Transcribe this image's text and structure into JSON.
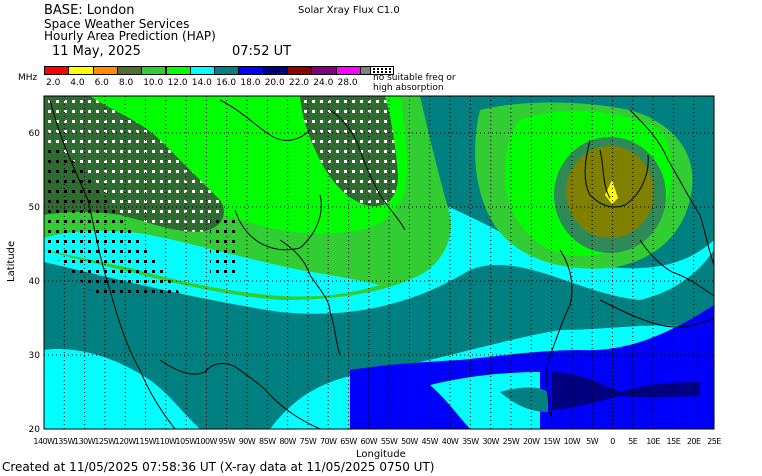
{
  "header": {
    "base": "BASE: London",
    "agency": "Space Weather Services",
    "product": "Hourly Area Prediction (HAP)",
    "date": "11 May, 2025",
    "time": "07:52 UT",
    "flux": "Solar Xray Flux C1.0"
  },
  "legend": {
    "unit": "MHz",
    "values": [
      "2.0",
      "4.0",
      "6.0",
      "8.0",
      "10.0",
      "12.0",
      "14.0",
      "16.0",
      "18.0",
      "20.0",
      "22.0",
      "24.0",
      "28.0"
    ],
    "colors": [
      "#ff0000",
      "#ffff00",
      "#ff8c00",
      "#556b2f",
      "#32cd32",
      "#00ff00",
      "#00ffff",
      "#008080",
      "#0000ff",
      "#000080",
      "#8b0000",
      "#800080",
      "#ff00ff",
      "#808080"
    ],
    "no_freq_line1": "no suitable freq or",
    "no_freq_line2": "high absorption"
  },
  "axes": {
    "x_label": "Longitude",
    "y_label": "Latitude",
    "x_ticks": [
      "140W",
      "135W",
      "130W",
      "125W",
      "120W",
      "115W",
      "110W",
      "105W",
      "100W",
      "95W",
      "90W",
      "85W",
      "80W",
      "75W",
      "70W",
      "65W",
      "60W",
      "55W",
      "50W",
      "45W",
      "40W",
      "35W",
      "30W",
      "25W",
      "20W",
      "15W",
      "10W",
      "5W",
      "0",
      "5E",
      "10E",
      "15E",
      "20E",
      "25E"
    ],
    "y_ticks": [
      "20",
      "30",
      "40",
      "50",
      "60"
    ]
  },
  "footer": "Created at 11/05/2025 07:58:36 UT (X-ray data at 11/05/2025 0750 UT)"
}
